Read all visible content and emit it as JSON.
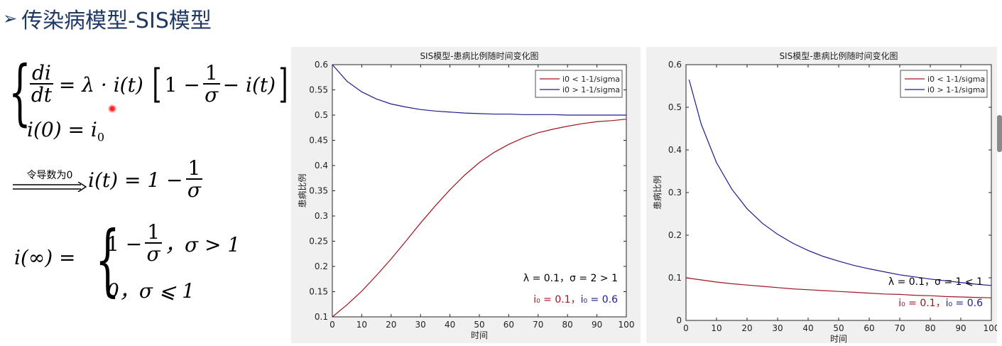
{
  "slide": {
    "title_bullet": "➢",
    "title": "传染病模型-SIS模型"
  },
  "equations": {
    "ode_numerator": "di",
    "ode_denominator": "dt",
    "ode_rhs_prefix": "= λ · i(t)",
    "bracket_one": "1 −",
    "frac_num": "1",
    "frac_den": "σ",
    "bracket_tail": "− i(t)",
    "initial_condition": "i(0) = i",
    "initial_sub": "0",
    "arrow_label": "令导数为0",
    "equilibrium_lhs": "i(t) = 1 −",
    "limit_lhs": "i(∞) =",
    "case1_prefix": "1 −",
    "case1_cond": "，σ > 1",
    "case2": "0，σ ⩽ 1"
  },
  "chart_data": [
    {
      "type": "line",
      "title": "SIS模型-患病比例随时间变化图",
      "xlabel": "时间",
      "ylabel": "患病比例",
      "xlim": [
        0,
        100
      ],
      "ylim": [
        0.1,
        0.6
      ],
      "xticks": [
        0,
        10,
        20,
        30,
        40,
        50,
        60,
        70,
        80,
        90,
        100
      ],
      "yticks": [
        0.1,
        0.15,
        0.2,
        0.25,
        0.3,
        0.35,
        0.4,
        0.45,
        0.5,
        0.55,
        0.6
      ],
      "ytick_labels": [
        "0.1",
        "0.15",
        "0.2",
        "0.25",
        "0.3",
        "0.35",
        "0.4",
        "0.45",
        "0.5",
        "0.55",
        "0.6"
      ],
      "legend_position": "top-right",
      "series": [
        {
          "name": "i0 < 1-1/sigma",
          "color": "#a0151f",
          "x": [
            0,
            5,
            10,
            15,
            20,
            25,
            30,
            35,
            40,
            45,
            50,
            55,
            60,
            65,
            70,
            75,
            80,
            85,
            90,
            95,
            100
          ],
          "values": [
            0.1,
            0.124,
            0.151,
            0.182,
            0.215,
            0.25,
            0.286,
            0.32,
            0.352,
            0.381,
            0.406,
            0.426,
            0.442,
            0.455,
            0.465,
            0.472,
            0.478,
            0.483,
            0.487,
            0.489,
            0.492
          ]
        },
        {
          "name": "i0 > 1-1/sigma",
          "color": "#1c1c8c",
          "x": [
            0,
            5,
            10,
            15,
            20,
            25,
            30,
            35,
            40,
            45,
            50,
            55,
            60,
            65,
            70,
            75,
            80,
            85,
            90,
            95,
            100
          ],
          "values": [
            0.6,
            0.567,
            0.546,
            0.532,
            0.522,
            0.516,
            0.511,
            0.508,
            0.506,
            0.504,
            0.503,
            0.502,
            0.502,
            0.501,
            0.501,
            0.501,
            0.5,
            0.5,
            0.5,
            0.5,
            0.5
          ]
        }
      ],
      "annotations": [
        {
          "text": "λ = 0.1，σ = 2 > 1",
          "color": "#000000"
        },
        {
          "text": "i₀ = 0.1，",
          "color": "#a0151f"
        },
        {
          "text": "i₀ = 0.6",
          "color": "#1c1c8c"
        }
      ]
    },
    {
      "type": "line",
      "title": "SIS模型-患病比例随时间变化图",
      "xlabel": "时间",
      "ylabel": "患病比例",
      "xlim": [
        0,
        100
      ],
      "ylim": [
        0,
        0.6
      ],
      "xticks": [
        0,
        10,
        20,
        30,
        40,
        50,
        60,
        70,
        80,
        90,
        100
      ],
      "yticks": [
        0,
        0.1,
        0.2,
        0.3,
        0.4,
        0.5,
        0.6
      ],
      "ytick_labels": [
        "0",
        "0.1",
        "0.2",
        "0.3",
        "0.4",
        "0.5",
        "0.6"
      ],
      "legend_position": "top-right",
      "series": [
        {
          "name": "i0 < 1-1/sigma",
          "color": "#a0151f",
          "x": [
            0,
            5,
            10,
            15,
            20,
            25,
            30,
            35,
            40,
            45,
            50,
            55,
            60,
            65,
            70,
            75,
            80,
            85,
            90,
            95,
            100
          ],
          "values": [
            0.1,
            0.095,
            0.09,
            0.086,
            0.083,
            0.08,
            0.077,
            0.074,
            0.072,
            0.07,
            0.068,
            0.066,
            0.064,
            0.062,
            0.061,
            0.059,
            0.058,
            0.056,
            0.055,
            0.054,
            0.053
          ]
        },
        {
          "name": "i0 > 1-1/sigma",
          "color": "#1c1c8c",
          "x": [
            1,
            5,
            10,
            15,
            20,
            25,
            30,
            35,
            40,
            45,
            50,
            55,
            60,
            65,
            70,
            75,
            80,
            85,
            90,
            95,
            100
          ],
          "values": [
            0.565,
            0.46,
            0.37,
            0.308,
            0.262,
            0.228,
            0.202,
            0.181,
            0.164,
            0.15,
            0.139,
            0.129,
            0.121,
            0.114,
            0.107,
            0.102,
            0.097,
            0.093,
            0.089,
            0.085,
            0.082
          ]
        }
      ],
      "annotations": [
        {
          "text": "λ = 0.1，σ = 1 ⩽ 1",
          "color": "#000000"
        },
        {
          "text": "i₀ = 0.1，",
          "color": "#a0151f"
        },
        {
          "text": "i₀ = 0.6",
          "color": "#1c1c8c"
        }
      ]
    }
  ]
}
